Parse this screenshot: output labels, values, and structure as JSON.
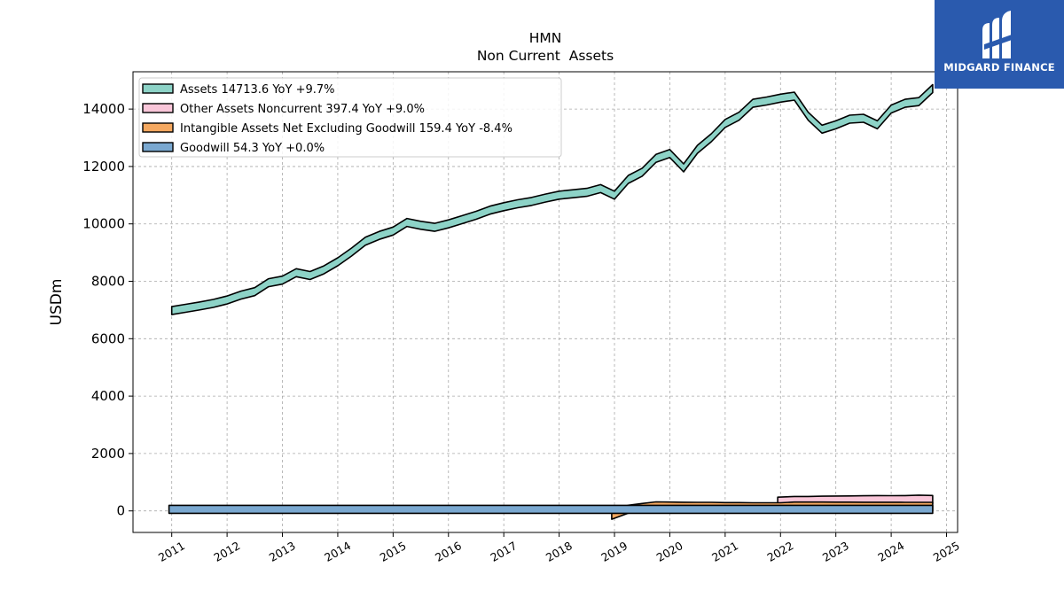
{
  "chart_data": {
    "type": "area",
    "title": "HMN",
    "subtitle": "Non Current  Assets",
    "xlabel": "",
    "ylabel": "USDm",
    "xlim": [
      2010.3,
      2025.2
    ],
    "ylim": [
      -750,
      15300
    ],
    "x_ticks": [
      "2011",
      "2012",
      "2013",
      "2014",
      "2015",
      "2016",
      "2017",
      "2018",
      "2019",
      "2020",
      "2021",
      "2022",
      "2023",
      "2024",
      "2025"
    ],
    "y_ticks": [
      0,
      2000,
      4000,
      6000,
      8000,
      10000,
      12000,
      14000
    ],
    "grid": true,
    "legend_position": "top-left",
    "series": [
      {
        "name": "Assets",
        "legend": "Assets  14713.6 YoY +9.7%",
        "color": "#8dd3c7",
        "points": [
          [
            2011.0,
            6980
          ],
          [
            2011.25,
            7060
          ],
          [
            2011.5,
            7140
          ],
          [
            2011.75,
            7230
          ],
          [
            2012.0,
            7350
          ],
          [
            2012.25,
            7520
          ],
          [
            2012.5,
            7640
          ],
          [
            2012.75,
            7950
          ],
          [
            2013.0,
            8040
          ],
          [
            2013.25,
            8300
          ],
          [
            2013.5,
            8200
          ],
          [
            2013.75,
            8400
          ],
          [
            2014.0,
            8680
          ],
          [
            2014.25,
            9020
          ],
          [
            2014.5,
            9400
          ],
          [
            2014.75,
            9600
          ],
          [
            2015.0,
            9750
          ],
          [
            2015.25,
            10050
          ],
          [
            2015.5,
            9950
          ],
          [
            2015.75,
            9880
          ],
          [
            2016.0,
            10000
          ],
          [
            2016.25,
            10150
          ],
          [
            2016.5,
            10300
          ],
          [
            2016.75,
            10480
          ],
          [
            2017.0,
            10600
          ],
          [
            2017.25,
            10700
          ],
          [
            2017.5,
            10780
          ],
          [
            2017.75,
            10900
          ],
          [
            2018.0,
            11000
          ],
          [
            2018.25,
            11050
          ],
          [
            2018.5,
            11100
          ],
          [
            2018.75,
            11230
          ],
          [
            2019.0,
            11000
          ],
          [
            2019.25,
            11550
          ],
          [
            2019.5,
            11800
          ],
          [
            2019.75,
            12280
          ],
          [
            2020.0,
            12450
          ],
          [
            2020.25,
            11950
          ],
          [
            2020.5,
            12600
          ],
          [
            2020.75,
            13000
          ],
          [
            2021.0,
            13500
          ],
          [
            2021.25,
            13750
          ],
          [
            2021.5,
            14200
          ],
          [
            2021.75,
            14280
          ],
          [
            2022.0,
            14380
          ],
          [
            2022.25,
            14450
          ],
          [
            2022.5,
            13750
          ],
          [
            2022.75,
            13300
          ],
          [
            2023.0,
            13450
          ],
          [
            2023.25,
            13650
          ],
          [
            2023.5,
            13680
          ],
          [
            2023.75,
            13450
          ],
          [
            2024.0,
            14000
          ],
          [
            2024.25,
            14200
          ],
          [
            2024.5,
            14260
          ],
          [
            2024.75,
            14713.6
          ]
        ]
      },
      {
        "name": "Other Assets Noncurrent",
        "legend": "Other Assets Noncurrent  397.4 YoY +9.0%",
        "color": "#f9c6d9",
        "points": [
          [
            2021.95,
            340
          ],
          [
            2022.25,
            365
          ],
          [
            2022.5,
            365
          ],
          [
            2022.75,
            375
          ],
          [
            2023.0,
            380
          ],
          [
            2023.25,
            382
          ],
          [
            2023.5,
            388
          ],
          [
            2023.75,
            395
          ],
          [
            2024.0,
            392
          ],
          [
            2024.25,
            395
          ],
          [
            2024.5,
            410
          ],
          [
            2024.75,
            397.4
          ]
        ]
      },
      {
        "name": "Intangible Assets Net Excluding Goodwill",
        "legend": "Intangible Assets Net Excluding Goodwill  159.4 YoY -8.4%",
        "color": "#f4a860",
        "points": [
          [
            2018.95,
            -150
          ],
          [
            2019.25,
            60
          ],
          [
            2019.5,
            120
          ],
          [
            2019.75,
            175
          ],
          [
            2020.0,
            170
          ],
          [
            2020.25,
            165
          ],
          [
            2020.5,
            160
          ],
          [
            2020.75,
            160
          ],
          [
            2021.0,
            150
          ],
          [
            2021.25,
            150
          ],
          [
            2021.5,
            145
          ],
          [
            2021.75,
            145
          ],
          [
            2022.0,
            145
          ],
          [
            2022.25,
            170
          ],
          [
            2022.5,
            170
          ],
          [
            2022.75,
            170
          ],
          [
            2023.0,
            168
          ],
          [
            2023.25,
            166
          ],
          [
            2023.5,
            165
          ],
          [
            2023.75,
            165
          ],
          [
            2024.0,
            163
          ],
          [
            2024.25,
            162
          ],
          [
            2024.5,
            160
          ],
          [
            2024.75,
            159.4
          ]
        ]
      },
      {
        "name": "Goodwill",
        "legend": "Goodwill  54.3 YoY +0.0%",
        "color": "#7aa8d0",
        "points": [
          [
            2010.95,
            54.3
          ],
          [
            2024.75,
            54.3
          ]
        ]
      }
    ]
  },
  "brand": {
    "name": "MIDGARD FINANCE",
    "color": "#2a5aae"
  }
}
